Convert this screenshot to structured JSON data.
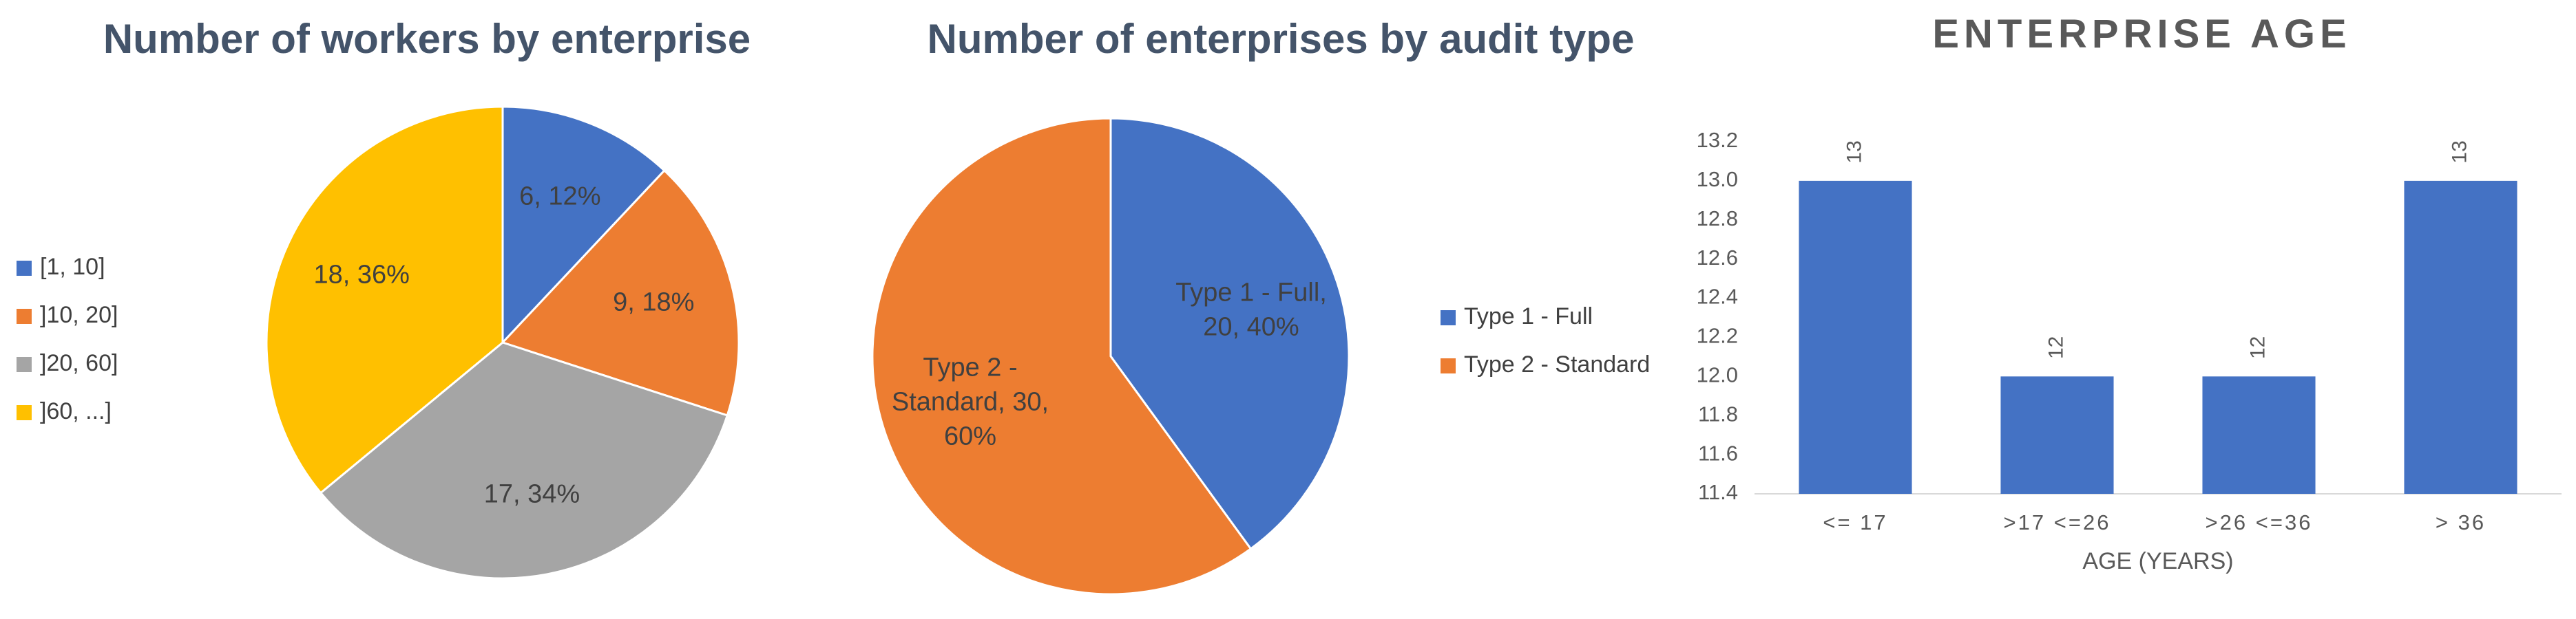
{
  "chart_data": [
    {
      "type": "pie",
      "title": "Number of workers by enterprise",
      "legend_position": "left",
      "slices": [
        {
          "label": "[1, 10]",
          "value": 6,
          "percent": "12%",
          "color": "#4472c4"
        },
        {
          "label": "]10, 20]",
          "value": 9,
          "percent": "18%",
          "color": "#ed7d31"
        },
        {
          "label": "]20, 60]",
          "value": 17,
          "percent": "34%",
          "color": "#a5a5a5"
        },
        {
          "label": "]60, ...]",
          "value": 18,
          "percent": "36%",
          "color": "#ffc000"
        }
      ]
    },
    {
      "type": "pie",
      "title": "Number of enterprises by audit type",
      "legend_position": "right",
      "slices": [
        {
          "label": "Type 1 - Full",
          "value": 20,
          "percent": "40%",
          "color": "#4472c4"
        },
        {
          "label": "Type 2 - Standard",
          "value": 30,
          "percent": "60%",
          "color": "#ed7d31"
        }
      ]
    },
    {
      "type": "bar",
      "title": "ENTERPRISE AGE",
      "xlabel": "AGE (YEARS)",
      "ylabel": "",
      "categories": [
        "<= 17",
        ">17 <=26",
        ">26 <=36",
        "> 36"
      ],
      "values": [
        13,
        12,
        12,
        13
      ],
      "ylim": [
        11.4,
        13.2
      ],
      "ytick_step": 0.2,
      "grid": false,
      "bar_color": "#4472c4"
    }
  ]
}
